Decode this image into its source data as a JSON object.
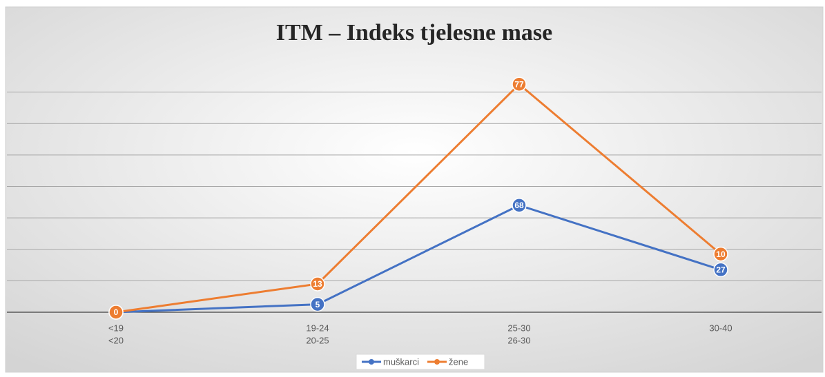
{
  "chart_data": {
    "type": "line",
    "stacked": true,
    "title": "ITM – Indeks tjelesne mase",
    "categories": [
      [
        "<19",
        "<20"
      ],
      [
        "19-24",
        "20-25"
      ],
      [
        "25-30",
        "26-30"
      ],
      [
        "30-40"
      ]
    ],
    "series": [
      {
        "name": "muškarci",
        "color": "#4472c4",
        "values": [
          0,
          5,
          68,
          27
        ]
      },
      {
        "name": "žene",
        "color": "#ed7d31",
        "values": [
          0,
          13,
          77,
          10
        ]
      }
    ],
    "ylim": [
      0,
      160
    ],
    "yticks": [
      0,
      20,
      40,
      60,
      80,
      100,
      120,
      140
    ],
    "grid": true,
    "legend": "bottom"
  }
}
